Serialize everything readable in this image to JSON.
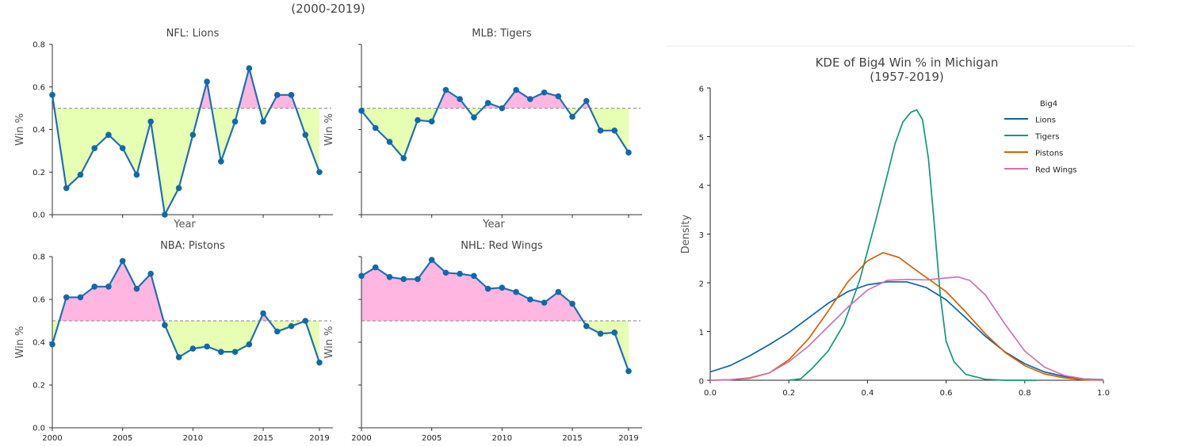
{
  "figure_title": "(2000-2019)",
  "colors": {
    "above": "#ffb6e1",
    "below": "#e6ffb3",
    "line": "#1f6fb4",
    "marker": "#0f6aa8",
    "threshold": "#999999"
  },
  "chart_data": [
    {
      "type": "line",
      "title": "NFL: Lions",
      "xlabel": "Year",
      "ylabel": "Win %",
      "threshold": 0.5,
      "xlim": [
        2000,
        2019
      ],
      "ylim": [
        0,
        0.8
      ],
      "yticks": [
        "0.0",
        "0.2",
        "0.4",
        "0.6",
        "0.8"
      ],
      "xticks": [],
      "x": [
        2000,
        2001,
        2002,
        2003,
        2004,
        2005,
        2006,
        2007,
        2008,
        2009,
        2010,
        2011,
        2012,
        2013,
        2014,
        2015,
        2016,
        2017,
        2018,
        2019
      ],
      "values": [
        0.5625,
        0.125,
        0.1875,
        0.3125,
        0.375,
        0.3125,
        0.1875,
        0.4375,
        0.0,
        0.125,
        0.375,
        0.625,
        0.25,
        0.4375,
        0.6875,
        0.4375,
        0.5625,
        0.5625,
        0.375,
        0.2
      ]
    },
    {
      "type": "line",
      "title": "MLB: Tigers",
      "xlabel": "Year",
      "ylabel": "Win %",
      "threshold": 0.5,
      "xlim": [
        2000,
        2019
      ],
      "ylim": [
        0,
        0.8
      ],
      "yticks": [],
      "xticks": [],
      "x": [
        2000,
        2001,
        2002,
        2003,
        2004,
        2005,
        2006,
        2007,
        2008,
        2009,
        2010,
        2011,
        2012,
        2013,
        2014,
        2015,
        2016,
        2017,
        2018,
        2019
      ],
      "values": [
        0.488,
        0.407,
        0.342,
        0.265,
        0.444,
        0.438,
        0.586,
        0.543,
        0.457,
        0.525,
        0.5,
        0.586,
        0.543,
        0.574,
        0.556,
        0.46,
        0.534,
        0.395,
        0.395,
        0.292
      ]
    },
    {
      "type": "line",
      "title": "NBA: Pistons",
      "xlabel": "",
      "ylabel": "Win %",
      "threshold": 0.5,
      "xlim": [
        2000,
        2019
      ],
      "ylim": [
        0,
        0.8
      ],
      "yticks": [
        "0.0",
        "0.2",
        "0.4",
        "0.6",
        "0.8"
      ],
      "xticks": [
        "2000",
        "2005",
        "2010",
        "2015",
        "2019"
      ],
      "x": [
        2000,
        2001,
        2002,
        2003,
        2004,
        2005,
        2006,
        2007,
        2008,
        2009,
        2010,
        2011,
        2012,
        2013,
        2014,
        2015,
        2016,
        2017,
        2018,
        2019
      ],
      "values": [
        0.39,
        0.61,
        0.61,
        0.66,
        0.66,
        0.78,
        0.65,
        0.72,
        0.48,
        0.33,
        0.37,
        0.38,
        0.355,
        0.355,
        0.39,
        0.535,
        0.45,
        0.475,
        0.5,
        0.305
      ]
    },
    {
      "type": "line",
      "title": "NHL: Red Wings",
      "xlabel": "",
      "ylabel": "Win %",
      "threshold": 0.5,
      "xlim": [
        2000,
        2019
      ],
      "ylim": [
        0,
        0.8
      ],
      "yticks": [],
      "xticks": [
        "2000",
        "2005",
        "2010",
        "2015",
        "2019"
      ],
      "x": [
        2000,
        2001,
        2002,
        2003,
        2004,
        2005,
        2006,
        2007,
        2008,
        2009,
        2010,
        2011,
        2012,
        2013,
        2014,
        2015,
        2016,
        2017,
        2018,
        2019
      ],
      "values": [
        0.71,
        0.75,
        0.705,
        0.695,
        0.695,
        0.785,
        0.725,
        0.72,
        0.71,
        0.65,
        0.655,
        0.635,
        0.6,
        0.585,
        0.635,
        0.58,
        0.475,
        0.44,
        0.445,
        0.265
      ]
    },
    {
      "type": "line",
      "title": "KDE of Big4 Win % in Michigan\n(1957-2019)",
      "xlabel": "",
      "ylabel": "Density",
      "xlim": [
        0.0,
        1.0
      ],
      "ylim": [
        0,
        6
      ],
      "xticks": [
        "0.0",
        "0.2",
        "0.4",
        "0.6",
        "0.8",
        "1.0"
      ],
      "yticks": [
        "0",
        "1",
        "2",
        "3",
        "4",
        "5",
        "6"
      ],
      "legend_title": "Big4",
      "legend_placement": "top-right",
      "series": [
        {
          "name": "Lions",
          "color": "#0d63a5",
          "x": [
            0.0,
            0.05,
            0.1,
            0.15,
            0.2,
            0.25,
            0.3,
            0.35,
            0.4,
            0.45,
            0.5,
            0.55,
            0.6,
            0.65,
            0.7,
            0.75,
            0.8,
            0.85,
            0.9,
            0.95,
            1.0
          ],
          "values": [
            0.17,
            0.3,
            0.5,
            0.73,
            0.98,
            1.28,
            1.58,
            1.82,
            1.96,
            2.02,
            2.02,
            1.9,
            1.65,
            1.28,
            0.9,
            0.58,
            0.34,
            0.17,
            0.08,
            0.03,
            0.01
          ]
        },
        {
          "name": "Tigers",
          "color": "#0e9a78",
          "x": [
            0.2,
            0.23,
            0.26,
            0.3,
            0.34,
            0.38,
            0.42,
            0.45,
            0.47,
            0.49,
            0.51,
            0.525,
            0.54,
            0.555,
            0.57,
            0.585,
            0.6,
            0.62,
            0.65,
            0.7,
            0.75,
            0.83
          ],
          "values": [
            0.0,
            0.03,
            0.25,
            0.6,
            1.15,
            2.05,
            3.25,
            4.2,
            4.85,
            5.3,
            5.5,
            5.55,
            5.35,
            4.55,
            3.2,
            1.75,
            0.8,
            0.38,
            0.12,
            0.02,
            0.0,
            0.0
          ]
        },
        {
          "name": "Pistons",
          "color": "#d46103",
          "x": [
            0.0,
            0.05,
            0.1,
            0.15,
            0.2,
            0.25,
            0.3,
            0.35,
            0.4,
            0.44,
            0.48,
            0.52,
            0.56,
            0.6,
            0.65,
            0.7,
            0.75,
            0.8,
            0.85,
            0.9,
            0.95,
            1.0
          ],
          "values": [
            0.0,
            0.01,
            0.04,
            0.15,
            0.42,
            0.85,
            1.42,
            2.02,
            2.45,
            2.62,
            2.52,
            2.28,
            2.05,
            1.82,
            1.4,
            0.95,
            0.57,
            0.3,
            0.13,
            0.05,
            0.01,
            0.0
          ]
        },
        {
          "name": "Red Wings",
          "color": "#cc73b4",
          "x": [
            0.0,
            0.05,
            0.1,
            0.15,
            0.2,
            0.25,
            0.3,
            0.35,
            0.4,
            0.45,
            0.5,
            0.55,
            0.6,
            0.63,
            0.66,
            0.7,
            0.75,
            0.8,
            0.85,
            0.9,
            0.95,
            1.0
          ],
          "values": [
            0.0,
            0.01,
            0.05,
            0.15,
            0.38,
            0.7,
            1.1,
            1.5,
            1.85,
            2.05,
            2.07,
            2.06,
            2.1,
            2.12,
            2.05,
            1.75,
            1.15,
            0.6,
            0.27,
            0.1,
            0.03,
            0.0
          ]
        }
      ]
    }
  ]
}
